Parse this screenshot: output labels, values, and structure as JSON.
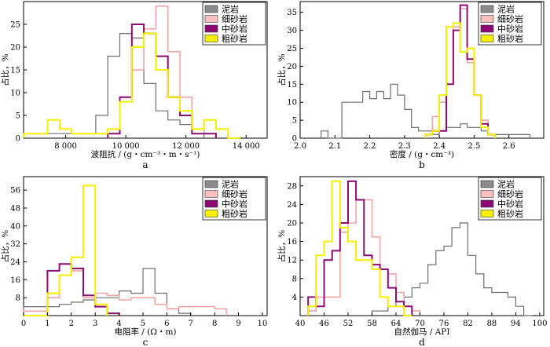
{
  "legend_labels": [
    "泥岩",
    "细砂岩",
    "中砂岩",
    "粗砂岩"
  ],
  "colors": {
    "mud": "#6f6f6f",
    "fine": "#f4a6a6",
    "medium": "#8c0a73",
    "coarse": "#f6ef00",
    "mud_fill": "#8c8c8c"
  },
  "chart_data": [
    {
      "type": "histogram-step",
      "panel_label": "a",
      "xlabel": "波阻抗 / (g・cm⁻³・m・s⁻¹)",
      "ylabel": "占比，%",
      "xlim": [
        6600,
        14700
      ],
      "ylim": [
        0,
        30
      ],
      "xticks": [
        8000,
        10000,
        12000,
        14000
      ],
      "xtick_labels": [
        "8 000",
        "10 000",
        "12 000",
        "14 000"
      ],
      "yticks": [
        0,
        5,
        10,
        15,
        20,
        25
      ],
      "series": [
        {
          "name": "泥岩",
          "edges": [
            6600,
            9000,
            9400,
            9800,
            10200,
            10600,
            11000,
            11400,
            11800,
            12200,
            12600
          ],
          "values": [
            1,
            5,
            18,
            23,
            22,
            12,
            6,
            4,
            3,
            2
          ]
        },
        {
          "name": "细砂岩",
          "edges": [
            9400,
            9800,
            10200,
            10600,
            11000,
            11400,
            11800,
            12200,
            12600,
            13000
          ],
          "values": [
            2,
            9,
            15,
            24,
            29,
            19,
            9,
            2,
            1
          ]
        },
        {
          "name": "中砂岩",
          "edges": [
            9400,
            9800,
            10200,
            10600,
            11000,
            11400,
            11800,
            12200,
            12600,
            13000
          ],
          "values": [
            1,
            9,
            25,
            23,
            18,
            9,
            5,
            1,
            1
          ]
        },
        {
          "name": "粗砂岩",
          "edges": [
            6600,
            7400,
            7800,
            8200,
            9400,
            9800,
            10200,
            10600,
            11000,
            11400,
            11800,
            12200,
            12600,
            13000,
            13400,
            13800
          ],
          "values": [
            1,
            4,
            2,
            1,
            2,
            8,
            20,
            23,
            15,
            9,
            6,
            2,
            4,
            2,
            0
          ]
        }
      ]
    },
    {
      "type": "histogram-step",
      "panel_label": "b",
      "xlabel": "密度 / (g・cm⁻³)",
      "ylabel": "占比，%",
      "xlim": [
        2.0,
        2.7
      ],
      "ylim": [
        0,
        38
      ],
      "xticks": [
        2.0,
        2.1,
        2.2,
        2.3,
        2.4,
        2.5,
        2.6
      ],
      "xtick_labels": [
        "2.0",
        "2.1",
        "2.2",
        "2.3",
        "2.4",
        "2.5",
        "2.6"
      ],
      "yticks": [
        0,
        5,
        10,
        15,
        20,
        25,
        30,
        35
      ],
      "series": [
        {
          "name": "泥岩",
          "edges": [
            2.06,
            2.08,
            2.12,
            2.14,
            2.16,
            2.18,
            2.2,
            2.22,
            2.24,
            2.26,
            2.28,
            2.3,
            2.32,
            2.34,
            2.36,
            2.38,
            2.4,
            2.42,
            2.44,
            2.46,
            2.48,
            2.5,
            2.52,
            2.54,
            2.56,
            2.58,
            2.6,
            2.62,
            2.64,
            2.66
          ],
          "values": [
            2,
            0,
            10,
            10,
            10,
            13,
            11,
            13,
            11,
            15,
            12,
            8,
            3,
            2,
            2,
            1,
            2,
            3,
            3,
            4,
            3,
            3,
            2,
            1,
            1,
            1,
            1,
            1,
            1
          ]
        },
        {
          "name": "细砂岩",
          "edges": [
            2.36,
            2.38,
            2.4,
            2.42,
            2.44,
            2.46,
            2.48,
            2.5,
            2.52,
            2.54,
            2.56
          ],
          "values": [
            1,
            6,
            10,
            15,
            31,
            36,
            21,
            12,
            5,
            1
          ]
        },
        {
          "name": "中砂岩",
          "edges": [
            2.36,
            2.38,
            2.4,
            2.42,
            2.44,
            2.46,
            2.48,
            2.5,
            2.52,
            2.54,
            2.56
          ],
          "values": [
            1,
            2,
            2,
            15,
            30,
            37,
            22,
            12,
            4,
            1
          ]
        },
        {
          "name": "粗砂岩",
          "edges": [
            2.36,
            2.38,
            2.4,
            2.42,
            2.44,
            2.46,
            2.48,
            2.5,
            2.52,
            2.54,
            2.56
          ],
          "values": [
            1,
            2,
            12,
            31,
            32,
            24,
            25,
            12,
            3,
            1
          ]
        }
      ]
    },
    {
      "type": "histogram-step",
      "panel_label": "c",
      "xlabel": "电阻率 / (Ω・m)",
      "ylabel": "占比，%",
      "xlim": [
        0,
        10.2
      ],
      "ylim": [
        0,
        62
      ],
      "xticks": [
        0,
        1,
        2,
        3,
        4,
        5,
        6,
        7,
        8,
        9,
        10
      ],
      "xtick_labels": [
        "0",
        "1",
        "2",
        "3",
        "4",
        "5",
        "6",
        "7",
        "8",
        "9",
        "10"
      ],
      "yticks": [
        8,
        16,
        24,
        32,
        40,
        48,
        56
      ],
      "series": [
        {
          "name": "泥岩",
          "edges": [
            0,
            1,
            1.5,
            2,
            2.5,
            3,
            3.5,
            4,
            4.5,
            5,
            5.5,
            6,
            6.5,
            7
          ],
          "values": [
            4,
            4,
            5,
            6,
            7,
            8,
            8,
            11,
            10,
            21,
            10,
            3,
            1
          ]
        },
        {
          "name": "细砂岩",
          "edges": [
            0,
            1,
            1.5,
            2,
            2.5,
            3,
            3.5,
            4,
            4.5,
            5,
            5.5,
            6,
            6.5,
            7,
            7.5,
            8,
            8.5
          ],
          "values": [
            2,
            8,
            18,
            20,
            8,
            10,
            9,
            7,
            8,
            8,
            5,
            3,
            4,
            4,
            4,
            3
          ]
        },
        {
          "name": "中砂岩",
          "edges": [
            0,
            1,
            1.5,
            2,
            2.5,
            3,
            3.5,
            4
          ],
          "values": [
            0,
            20,
            23,
            21,
            9,
            4,
            1
          ]
        },
        {
          "name": "粗砂岩",
          "edges": [
            0,
            1,
            1.5,
            2,
            2.5,
            3,
            3.5
          ],
          "values": [
            0,
            10,
            18,
            26,
            58,
            5
          ]
        }
      ]
    },
    {
      "type": "histogram-step",
      "panel_label": "d",
      "xlabel": "自然伽马 / API",
      "ylabel": "占比，%",
      "xlim": [
        40,
        101
      ],
      "ylim": [
        0,
        30
      ],
      "xticks": [
        40,
        46,
        52,
        58,
        64,
        70,
        76,
        82,
        88,
        94,
        100
      ],
      "xtick_labels": [
        "40",
        "46",
        "52",
        "58",
        "64",
        "70",
        "76",
        "82",
        "88",
        "94",
        "100"
      ],
      "yticks": [
        4,
        8,
        12,
        16,
        20,
        24,
        28
      ],
      "series": [
        {
          "name": "泥岩",
          "edges": [
            58,
            62,
            64,
            66,
            68,
            70,
            72,
            74,
            76,
            78,
            80,
            82,
            84,
            86,
            88,
            90,
            92,
            94,
            96,
            98
          ],
          "values": [
            1,
            2,
            3,
            4,
            6,
            7,
            11,
            14,
            15,
            19,
            20,
            13,
            9,
            6,
            5,
            5,
            4,
            2,
            0
          ]
        },
        {
          "name": "细砂岩",
          "edges": [
            42,
            44,
            46,
            48,
            50,
            52,
            54,
            56,
            58,
            60,
            62,
            64,
            66,
            68,
            70
          ],
          "values": [
            1,
            4,
            4,
            4,
            18,
            20,
            25,
            25,
            17,
            10,
            9,
            5,
            2,
            1
          ]
        },
        {
          "name": "中砂岩",
          "edges": [
            42,
            44,
            46,
            48,
            50,
            52,
            54,
            56,
            58,
            60,
            62,
            64,
            66,
            68
          ],
          "values": [
            4,
            2,
            12,
            14,
            20,
            29,
            25,
            13,
            11,
            10,
            6,
            3,
            2
          ]
        },
        {
          "name": "粗砂岩",
          "edges": [
            42,
            44,
            46,
            48,
            50,
            52,
            54,
            56,
            58,
            60,
            62,
            64,
            66,
            68
          ],
          "values": [
            2,
            13,
            16,
            29,
            19,
            16,
            12,
            12,
            10,
            4,
            2,
            2,
            0
          ]
        }
      ]
    }
  ]
}
